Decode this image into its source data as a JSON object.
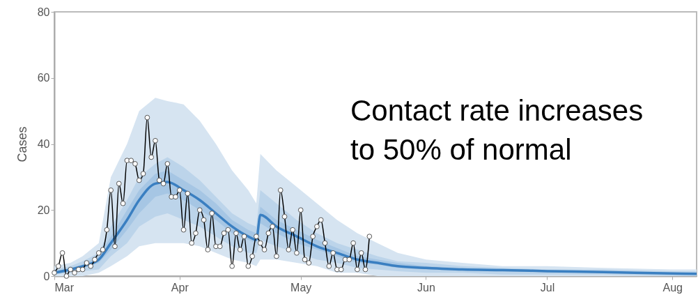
{
  "chart_data": {
    "type": "line",
    "ylabel": "Cases",
    "annotations": [
      "Contact rate increases to 50% of normal"
    ],
    "xlim": [
      "--03-01",
      "--08-07"
    ],
    "xticks": [
      {
        "value": "--03-01",
        "label": "Mar"
      },
      {
        "value": "--04-01",
        "label": "Apr"
      },
      {
        "value": "--05-01",
        "label": "May"
      },
      {
        "value": "--06-01",
        "label": "Jun"
      },
      {
        "value": "--07-01",
        "label": "Jul"
      },
      {
        "value": "--08-01",
        "label": "Aug"
      }
    ],
    "ylim": [
      0,
      80
    ],
    "yticks": [
      0,
      20,
      40,
      60,
      80
    ],
    "grid": false,
    "series": [
      {
        "color": "#d6e4f1",
        "x": [
          "--03-01",
          "--03-05",
          "--03-08",
          "--03-12",
          "--03-15",
          "--03-19",
          "--03-22",
          "--03-26",
          "--03-29",
          "--04-02",
          "--04-06",
          "--04-10",
          "--04-14",
          "--04-18",
          "--04-20",
          "--04-21",
          "--04-25",
          "--04-30",
          "--05-05",
          "--05-10",
          "--05-15",
          "--05-20",
          "--05-25",
          "--06-01",
          "--06-10",
          "--06-20",
          "--07-01",
          "--07-15",
          "--08-01",
          "--08-07"
        ],
        "values": [
          null,
          null,
          null,
          null,
          null,
          null,
          null,
          null,
          null,
          null,
          null,
          null,
          null,
          null,
          null,
          null,
          null,
          null,
          null,
          null,
          null,
          null,
          null,
          null,
          null,
          null,
          null,
          null,
          null,
          null
        ],
        "lower": [
          0,
          0,
          0,
          1,
          3,
          6,
          9,
          10,
          10,
          10,
          9,
          7,
          5,
          4,
          3,
          5,
          5,
          4,
          3,
          1,
          1,
          0,
          0,
          0,
          0,
          0,
          0,
          0,
          0,
          0
        ],
        "upper": [
          3,
          4,
          6,
          10,
          30,
          40,
          50,
          54,
          53,
          52,
          47,
          40,
          32,
          26,
          22,
          37,
          32,
          27,
          22,
          17,
          13,
          10,
          7,
          5,
          4,
          3,
          3,
          2.5,
          2,
          2
        ]
      },
      {
        "color": "#bcd4ea",
        "x": [
          "--03-01",
          "--03-05",
          "--03-08",
          "--03-12",
          "--03-15",
          "--03-19",
          "--03-22",
          "--03-26",
          "--03-29",
          "--04-02",
          "--04-06",
          "--04-10",
          "--04-14",
          "--04-18",
          "--04-20",
          "--04-21",
          "--04-25",
          "--04-30",
          "--05-05",
          "--05-10",
          "--05-15",
          "--05-20",
          "--05-25",
          "--06-01",
          "--06-10",
          "--06-20",
          "--07-01",
          "--07-15",
          "--08-01",
          "--08-07"
        ],
        "values": [
          null,
          null,
          null,
          null,
          null,
          null,
          null,
          null,
          null,
          null,
          null,
          null,
          null,
          null,
          null,
          null,
          null,
          null,
          null,
          null,
          null,
          null,
          null,
          null,
          null,
          null,
          null,
          null,
          null,
          null
        ],
        "lower": [
          0.5,
          1,
          1.5,
          2,
          6,
          10,
          15,
          18,
          19,
          17,
          15,
          12,
          9,
          7,
          7,
          11,
          9,
          7,
          5,
          4,
          2.5,
          2,
          1.5,
          1,
          1,
          0.5,
          0.5,
          0.5,
          0,
          0
        ],
        "upper": [
          2,
          3,
          4.5,
          7,
          15,
          23,
          30,
          34,
          36,
          33,
          29,
          24,
          19,
          16,
          15,
          26,
          22,
          17,
          13,
          10,
          8,
          6,
          4.5,
          4,
          3,
          2.5,
          2,
          2,
          1.5,
          1.5
        ]
      },
      {
        "color": "#a6c6e4",
        "x": [
          "--03-01",
          "--03-05",
          "--03-08",
          "--03-12",
          "--03-15",
          "--03-19",
          "--03-22",
          "--03-26",
          "--03-29",
          "--04-02",
          "--04-06",
          "--04-10",
          "--04-14",
          "--04-18",
          "--04-20",
          "--04-21",
          "--04-25",
          "--04-30",
          "--05-05",
          "--05-10",
          "--05-15",
          "--05-20",
          "--05-25",
          "--06-01",
          "--06-10",
          "--06-20",
          "--07-01",
          "--07-15",
          "--08-01",
          "--08-07"
        ],
        "values": [
          null,
          null,
          null,
          null,
          null,
          null,
          null,
          null,
          null,
          null,
          null,
          null,
          null,
          null,
          null,
          null,
          null,
          null,
          null,
          null,
          null,
          null,
          null,
          null,
          null,
          null,
          null,
          null,
          null,
          null
        ],
        "lower": [
          0.8,
          1.5,
          2.5,
          4,
          8,
          14,
          19,
          24,
          25,
          23,
          20,
          17,
          13,
          11,
          10,
          16,
          13,
          10,
          8,
          6,
          4,
          3.5,
          2.5,
          2,
          1.7,
          1.5,
          1.2,
          1,
          0.6,
          0.6
        ],
        "upper": [
          1.5,
          2.5,
          3.5,
          6,
          12,
          20,
          26,
          31,
          32,
          29,
          26,
          22,
          17,
          14,
          13,
          21,
          17,
          14,
          11,
          8.5,
          6,
          5,
          4,
          3,
          2.5,
          2.2,
          1.8,
          1.5,
          1,
          0.9
        ]
      },
      {
        "color": "#3a7fc1",
        "marker": "none",
        "x": [
          "--03-01",
          "--03-05",
          "--03-08",
          "--03-12",
          "--03-15",
          "--03-19",
          "--03-22",
          "--03-26",
          "--03-29",
          "--04-02",
          "--04-06",
          "--04-10",
          "--04-14",
          "--04-18",
          "--04-20",
          "--04-21",
          "--04-25",
          "--04-30",
          "--05-05",
          "--05-10",
          "--05-15",
          "--05-20",
          "--05-25",
          "--06-01",
          "--06-10",
          "--06-20",
          "--07-01",
          "--07-15",
          "--08-01",
          "--08-07"
        ],
        "values": [
          1,
          2,
          3,
          5,
          10,
          17,
          23,
          28,
          28.5,
          26,
          23,
          19,
          15,
          12,
          11,
          18.5,
          15,
          12,
          9,
          7,
          5,
          4,
          3,
          2.5,
          2,
          1.8,
          1.5,
          1.2,
          0.8,
          0.7
        ]
      },
      {
        "color": "#000000",
        "marker": "circle",
        "x": [
          "--03-01",
          "--03-02",
          "--03-03",
          "--03-04",
          "--03-05",
          "--03-06",
          "--03-07",
          "--03-08",
          "--03-09",
          "--03-10",
          "--03-11",
          "--03-12",
          "--03-13",
          "--03-14",
          "--03-15",
          "--03-16",
          "--03-17",
          "--03-18",
          "--03-19",
          "--03-20",
          "--03-21",
          "--03-22",
          "--03-23",
          "--03-24",
          "--03-25",
          "--03-26",
          "--03-27",
          "--03-28",
          "--03-29",
          "--03-30",
          "--03-31",
          "--04-01",
          "--04-02",
          "--04-03",
          "--04-04",
          "--04-05",
          "--04-06",
          "--04-07",
          "--04-08",
          "--04-09",
          "--04-10",
          "--04-11",
          "--04-12",
          "--04-13",
          "--04-14",
          "--04-15",
          "--04-16",
          "--04-17",
          "--04-18",
          "--04-19",
          "--04-20",
          "--04-21",
          "--04-22",
          "--04-23",
          "--04-24",
          "--04-25",
          "--04-26",
          "--04-27",
          "--04-28",
          "--04-29",
          "--04-30",
          "--05-01",
          "--05-02",
          "--05-03",
          "--05-04",
          "--05-05",
          "--05-06",
          "--05-07",
          "--05-08",
          "--05-09",
          "--05-10",
          "--05-11",
          "--05-12",
          "--05-13",
          "--05-14",
          "--05-15",
          "--05-16",
          "--05-17",
          "--05-18"
        ],
        "values": [
          1,
          3,
          7,
          0,
          2,
          1,
          2,
          2,
          4,
          3,
          5,
          7,
          8,
          14,
          26,
          9,
          28,
          22,
          35,
          35,
          34,
          29,
          31,
          48,
          36,
          41,
          29,
          28,
          34,
          24,
          24,
          26,
          14,
          25,
          10,
          13,
          20,
          17,
          8,
          19,
          9,
          9,
          13,
          14,
          3,
          13,
          8,
          12,
          3,
          6,
          12,
          10,
          8,
          13,
          15,
          6,
          26,
          18,
          8,
          14,
          7,
          20,
          5,
          4,
          12,
          15,
          17,
          10,
          3,
          7,
          2,
          2,
          5,
          5,
          10,
          2,
          7,
          2,
          12
        ]
      }
    ]
  }
}
